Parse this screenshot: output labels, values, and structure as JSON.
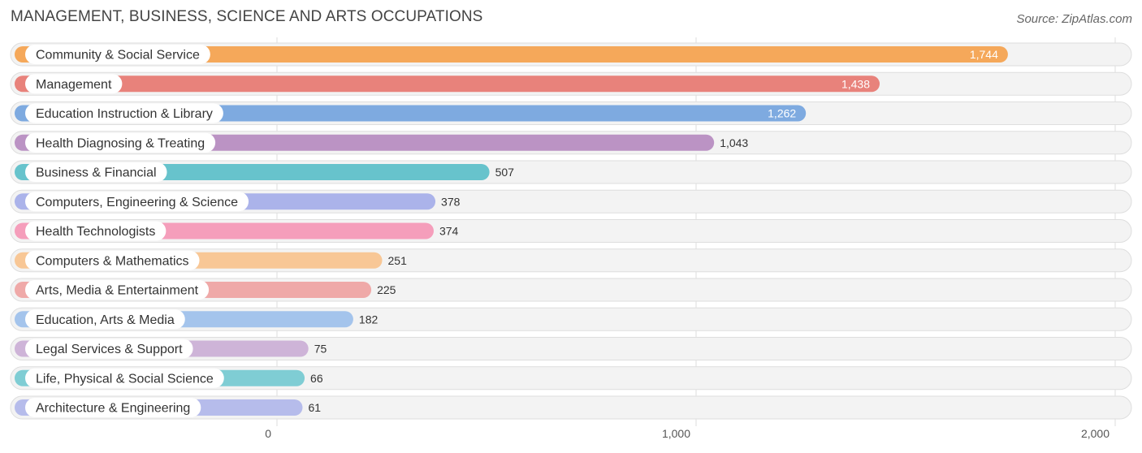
{
  "header": {
    "title": "MANAGEMENT, BUSINESS, SCIENCE AND ARTS OCCUPATIONS",
    "source": "Source: ZipAtlas.com"
  },
  "chart_data": {
    "type": "bar",
    "orientation": "horizontal",
    "title": "MANAGEMENT, BUSINESS, SCIENCE AND ARTS OCCUPATIONS",
    "xlabel": "",
    "ylabel": "",
    "xlim": [
      0,
      2000
    ],
    "ticks": [
      0,
      1000,
      2000
    ],
    "tick_labels": [
      "0",
      "1,000",
      "2,000"
    ],
    "grid": true,
    "categories": [
      "Community & Social Service",
      "Management",
      "Education Instruction & Library",
      "Health Diagnosing & Treating",
      "Business & Financial",
      "Computers, Engineering & Science",
      "Health Technologists",
      "Computers & Mathematics",
      "Arts, Media & Entertainment",
      "Education, Arts & Media",
      "Legal Services & Support",
      "Life, Physical & Social Science",
      "Architecture & Engineering"
    ],
    "values": [
      1744,
      1438,
      1262,
      1043,
      507,
      378,
      374,
      251,
      225,
      182,
      75,
      66,
      61
    ],
    "value_labels": [
      "1,744",
      "1,438",
      "1,262",
      "1,043",
      "507",
      "378",
      "374",
      "251",
      "225",
      "182",
      "75",
      "66",
      "61"
    ],
    "colors": [
      "#f5a85a",
      "#e8827b",
      "#7eaae0",
      "#bb93c4",
      "#67c3cc",
      "#abb3ea",
      "#f59ebb",
      "#f8c796",
      "#efa9a8",
      "#a4c4ec",
      "#ceb4d8",
      "#7fcdd4",
      "#b6bceb"
    ]
  }
}
